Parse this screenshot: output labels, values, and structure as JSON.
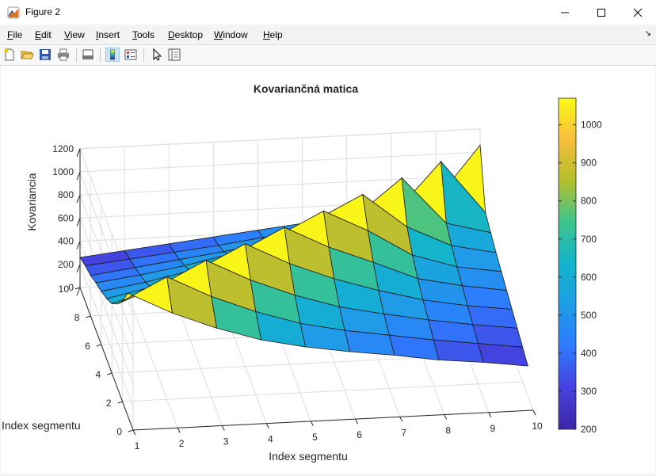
{
  "window": {
    "title": "Figure 2"
  },
  "menu": [
    {
      "label": "File",
      "key": "F",
      "rest": "ile"
    },
    {
      "label": "Edit",
      "key": "E",
      "rest": "dit"
    },
    {
      "label": "View",
      "key": "V",
      "rest": "iew"
    },
    {
      "label": "Insert",
      "key": "I",
      "rest": "nsert"
    },
    {
      "label": "Tools",
      "key": "T",
      "rest": "ools"
    },
    {
      "label": "Desktop",
      "key": "D",
      "rest": "esktop"
    },
    {
      "label": "Window",
      "key": "W",
      "rest": "indow"
    },
    {
      "label": "Help",
      "key": "H",
      "rest": "elp"
    }
  ],
  "toolbar_icons": [
    "new-figure-icon",
    "open-file-icon",
    "save-icon",
    "print-icon",
    "print-preview-icon",
    "colorbar-icon",
    "legend-icon",
    "pointer-icon",
    "property-inspector-icon"
  ],
  "chart_data": {
    "type": "surface",
    "title": "Kovariančná matica",
    "xlabel": "Index segmentu",
    "ylabel": "Index segmentu",
    "zlabel": "Kovariancia",
    "x": [
      1,
      2,
      3,
      4,
      5,
      6,
      7,
      8,
      9,
      10
    ],
    "y": [
      1,
      2,
      3,
      4,
      5,
      6,
      7,
      8,
      9,
      10
    ],
    "xticks": [
      "1",
      "2",
      "3",
      "4",
      "5",
      "6",
      "7",
      "8",
      "9",
      "10"
    ],
    "yticks": [
      "0",
      "2",
      "4",
      "6",
      "8",
      "10"
    ],
    "zticks": [
      "0",
      "200",
      "400",
      "600",
      "800",
      "1000",
      "1200"
    ],
    "xlim": [
      1,
      10
    ],
    "ylim": [
      0,
      10
    ],
    "zlim": [
      0,
      1200
    ],
    "colormap": "parula",
    "colorbar": {
      "ticks": [
        "200",
        "300",
        "400",
        "500",
        "600",
        "700",
        "800",
        "900",
        "1000"
      ],
      "range": [
        200,
        1070
      ]
    },
    "grid": true,
    "z": [
      [
        1060,
        870,
        720,
        600,
        520,
        460,
        410,
        350,
        310,
        260
      ],
      [
        870,
        1060,
        870,
        720,
        600,
        520,
        460,
        400,
        350,
        300
      ],
      [
        720,
        870,
        1060,
        870,
        720,
        600,
        520,
        450,
        390,
        340
      ],
      [
        600,
        720,
        870,
        1060,
        870,
        720,
        600,
        500,
        430,
        380
      ],
      [
        520,
        600,
        720,
        870,
        1060,
        870,
        720,
        560,
        480,
        420
      ],
      [
        460,
        520,
        600,
        720,
        870,
        1060,
        870,
        640,
        520,
        460
      ],
      [
        410,
        460,
        520,
        600,
        720,
        870,
        1060,
        760,
        580,
        500
      ],
      [
        350,
        400,
        450,
        500,
        560,
        640,
        760,
        1060,
        650,
        550
      ],
      [
        310,
        350,
        390,
        430,
        480,
        520,
        580,
        650,
        1060,
        600
      ],
      [
        260,
        300,
        340,
        380,
        420,
        460,
        500,
        550,
        600,
        1060
      ]
    ]
  }
}
